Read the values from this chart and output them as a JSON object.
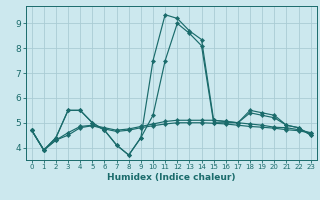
{
  "xlabel": "Humidex (Indice chaleur)",
  "xlim": [
    -0.5,
    23.5
  ],
  "ylim": [
    3.5,
    9.7
  ],
  "yticks": [
    4,
    5,
    6,
    7,
    8,
    9
  ],
  "xticks": [
    0,
    1,
    2,
    3,
    4,
    5,
    6,
    7,
    8,
    9,
    10,
    11,
    12,
    13,
    14,
    15,
    16,
    17,
    18,
    19,
    20,
    21,
    22,
    23
  ],
  "bg_color": "#cce8ee",
  "grid_color": "#aaccd4",
  "line_color": "#1a6b6b",
  "lines": [
    {
      "x": [
        0,
        1,
        2,
        3,
        4,
        5,
        6,
        7,
        8,
        9,
        10,
        11,
        12,
        13,
        14,
        15,
        16,
        17,
        18,
        19,
        20,
        21,
        22,
        23
      ],
      "y": [
        4.7,
        3.9,
        4.4,
        5.5,
        5.5,
        5.0,
        4.7,
        4.1,
        3.7,
        4.4,
        7.5,
        9.35,
        9.2,
        8.7,
        8.35,
        5.1,
        5.05,
        5.0,
        5.5,
        5.4,
        5.3,
        4.9,
        4.8,
        4.5
      ]
    },
    {
      "x": [
        0,
        1,
        2,
        3,
        4,
        5,
        6,
        7,
        8,
        9,
        10,
        11,
        12,
        13,
        14,
        15,
        16,
        17,
        18,
        19,
        20,
        21,
        22,
        23
      ],
      "y": [
        4.7,
        3.9,
        4.4,
        5.5,
        5.5,
        5.0,
        4.7,
        4.1,
        3.7,
        4.4,
        5.3,
        7.5,
        9.0,
        8.6,
        8.1,
        5.0,
        5.0,
        5.0,
        5.4,
        5.3,
        5.2,
        4.9,
        4.8,
        4.5
      ]
    },
    {
      "x": [
        0,
        1,
        2,
        3,
        4,
        5,
        6,
        7,
        8,
        9,
        10,
        11,
        12,
        13,
        14,
        15,
        16,
        17,
        18,
        19,
        20,
        21,
        22,
        23
      ],
      "y": [
        4.7,
        3.9,
        4.3,
        4.6,
        4.85,
        4.9,
        4.8,
        4.7,
        4.75,
        4.85,
        4.95,
        5.05,
        5.1,
        5.1,
        5.1,
        5.1,
        5.05,
        5.0,
        4.95,
        4.9,
        4.82,
        4.8,
        4.72,
        4.6
      ]
    },
    {
      "x": [
        0,
        1,
        2,
        3,
        4,
        5,
        6,
        7,
        8,
        9,
        10,
        11,
        12,
        13,
        14,
        15,
        16,
        17,
        18,
        19,
        20,
        21,
        22,
        23
      ],
      "y": [
        4.7,
        3.9,
        4.3,
        4.5,
        4.8,
        4.88,
        4.75,
        4.65,
        4.7,
        4.8,
        4.88,
        4.95,
        5.0,
        5.0,
        5.0,
        4.98,
        4.95,
        4.9,
        4.85,
        4.82,
        4.78,
        4.72,
        4.68,
        4.58
      ]
    }
  ]
}
